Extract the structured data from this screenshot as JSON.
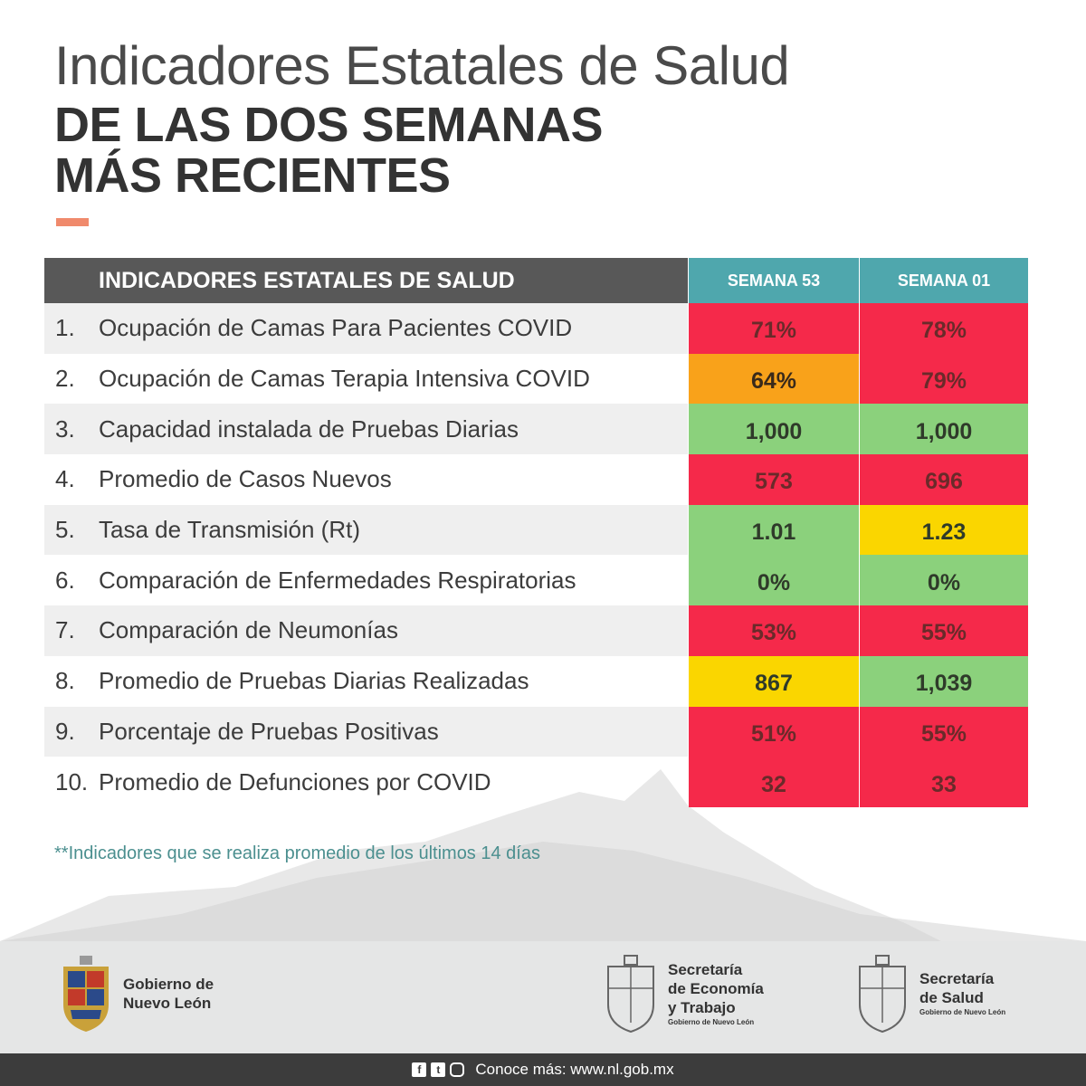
{
  "title": {
    "line1": "Indicadores Estatales de Salud",
    "line2": "DE LAS DOS SEMANAS",
    "line3": "MÁS RECIENTES"
  },
  "table": {
    "header": "INDICADORES ESTATALES DE SALUD",
    "col1": "SEMANA 53",
    "col2": "SEMANA 01",
    "rows": [
      {
        "num": "1.",
        "label": "Ocupación de Camas Para Pacientes COVID",
        "v1": "71%",
        "c1": "red",
        "v2": "78%",
        "c2": "red"
      },
      {
        "num": "2.",
        "label": "Ocupación de Camas Terapia Intensiva COVID",
        "v1": "64%",
        "c1": "orange",
        "v2": "79%",
        "c2": "red"
      },
      {
        "num": "3.",
        "label": "Capacidad instalada de Pruebas Diarias",
        "v1": "1,000",
        "c1": "green",
        "v2": "1,000",
        "c2": "green"
      },
      {
        "num": "4.",
        "label": "Promedio de Casos Nuevos",
        "v1": "573",
        "c1": "red",
        "v2": "696",
        "c2": "red"
      },
      {
        "num": "5.",
        "label": "Tasa de Transmisión (Rt)",
        "v1": "1.01",
        "c1": "green",
        "v2": "1.23",
        "c2": "yellow"
      },
      {
        "num": "6.",
        "label": "Comparación de Enfermedades Respiratorias",
        "v1": "0%",
        "c1": "green",
        "v2": "0%",
        "c2": "green"
      },
      {
        "num": "7.",
        "label": "Comparación de Neumonías",
        "v1": "53%",
        "c1": "red",
        "v2": "55%",
        "c2": "red"
      },
      {
        "num": "8.",
        "label": "Promedio de Pruebas Diarias Realizadas",
        "v1": "867",
        "c1": "yellow",
        "v2": "1,039",
        "c2": "green"
      },
      {
        "num": "9.",
        "label": "Porcentaje de Pruebas Positivas",
        "v1": "51%",
        "c1": "red",
        "v2": "55%",
        "c2": "red"
      },
      {
        "num": "10.",
        "label": "Promedio de Defunciones por COVID",
        "v1": "32",
        "c1": "red",
        "v2": "33",
        "c2": "red"
      }
    ]
  },
  "footnote": "**Indicadores que se realiza promedio de los últimos 14 días",
  "footer": {
    "gobierno": {
      "line1": "Gobierno de",
      "line2": "Nuevo León"
    },
    "economia": {
      "line1": "Secretaría",
      "line2": "de Economía",
      "line3": "y Trabajo",
      "sub": "Gobierno de Nuevo León"
    },
    "salud": {
      "line1": "Secretaría",
      "line2": "de Salud",
      "sub": "Gobierno de Nuevo León"
    }
  },
  "bottom_bar": {
    "icons": [
      "facebook-icon",
      "twitter-icon",
      "instagram-icon"
    ],
    "text": "Conoce más: www.nl.gob.mx"
  },
  "colors": {
    "red": "#f5294a",
    "orange": "#f9a21a",
    "green": "#8bd17c",
    "yellow": "#fad600",
    "header_dark": "#585858",
    "header_teal": "#4fa7ad",
    "accent": "#f08a6c"
  }
}
